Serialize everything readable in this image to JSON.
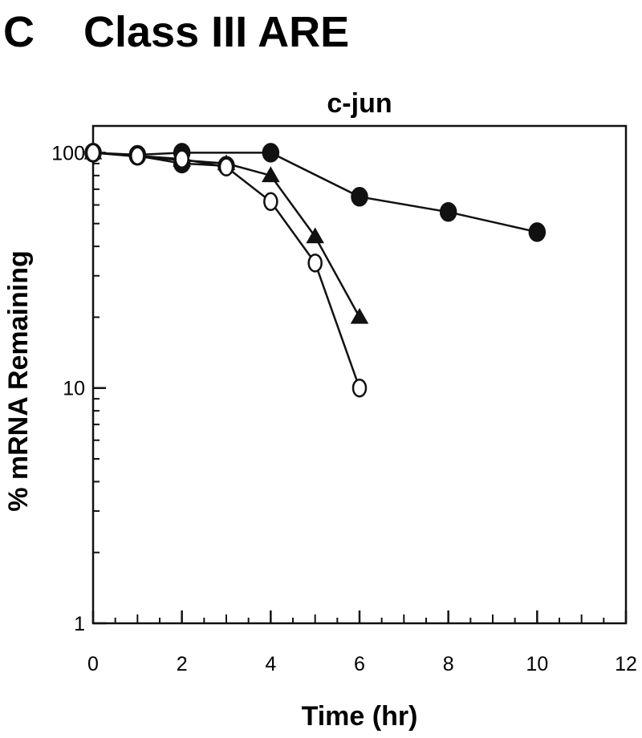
{
  "panel": {
    "letter": "C",
    "title": "Class III ARE"
  },
  "chart_data": {
    "type": "line",
    "title": "c-jun",
    "xlabel": "Time (hr)",
    "ylabel": "% mRNA Remaining",
    "yscale": "log",
    "xlim": [
      0,
      12
    ],
    "ylim": [
      1,
      130
    ],
    "x_ticks": [
      0,
      2,
      4,
      6,
      8,
      10,
      12
    ],
    "y_ticks": [
      1,
      10,
      100
    ],
    "grid": false,
    "legend": "none",
    "series": [
      {
        "marker": "filled-circle",
        "x": [
          0,
          1,
          2,
          3
        ],
        "y": [
          100,
          97,
          90,
          88
        ]
      },
      {
        "marker": "filled-circle",
        "x": [
          0,
          1,
          2,
          4,
          6,
          8,
          10
        ],
        "y": [
          100,
          98,
          100,
          100,
          65,
          56,
          46
        ]
      },
      {
        "marker": "filled-triangle",
        "x": [
          0,
          2,
          3,
          4,
          5,
          6
        ],
        "y": [
          100,
          93,
          90,
          80,
          44,
          20
        ]
      },
      {
        "marker": "open-circle",
        "x": [
          0,
          1,
          2,
          3,
          4,
          5,
          6
        ],
        "y": [
          100,
          97,
          94,
          87,
          62,
          34,
          10
        ]
      }
    ]
  }
}
